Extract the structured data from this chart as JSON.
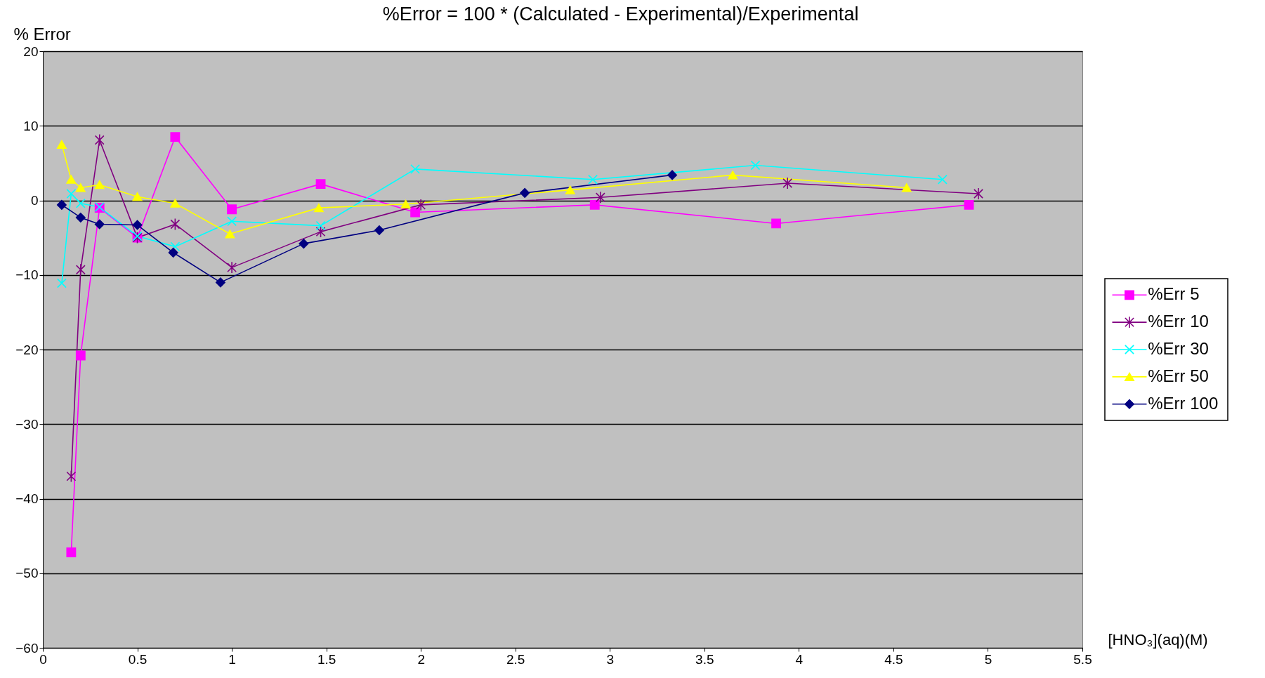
{
  "chart_data": {
    "type": "line",
    "title": "%Error = 100 * (Calculated - Experimental)/Experimental",
    "xlabel": "[HNO₃](aq)(M)",
    "ylabel": "% Error",
    "xlim": [
      0,
      5.5
    ],
    "xticks": [
      0,
      0.5,
      1,
      1.5,
      2,
      2.5,
      3,
      3.5,
      4,
      4.5,
      5,
      5.5
    ],
    "ylim": [
      -60,
      20
    ],
    "yticks": [
      -60,
      -50,
      -40,
      -30,
      -20,
      -10,
      0,
      10,
      20
    ],
    "grid": "y",
    "legend": "right",
    "series": [
      {
        "name": "%Err 5",
        "color": "#ff00ff",
        "marker": "square",
        "x": [
          0.15,
          0.2,
          0.3,
          0.5,
          0.7,
          1.0,
          1.47,
          1.97,
          2.92,
          3.88,
          4.9
        ],
        "values": [
          -47.2,
          -20.8,
          -1.0,
          -5.0,
          8.5,
          -1.2,
          2.2,
          -1.6,
          -0.6,
          -3.1,
          -0.6
        ]
      },
      {
        "name": "%Err 10",
        "color": "#800080",
        "marker": "cross",
        "x": [
          0.15,
          0.2,
          0.3,
          0.5,
          0.7,
          1.0,
          1.47,
          2.0,
          2.95,
          3.94,
          4.95
        ],
        "values": [
          -37.0,
          -9.3,
          8.1,
          -5.0,
          -3.2,
          -9.0,
          -4.2,
          -0.6,
          0.4,
          2.3,
          0.9
        ]
      },
      {
        "name": "%Err 30",
        "color": "#00ffff",
        "marker": "cross",
        "x": [
          0.1,
          0.15,
          0.2,
          0.3,
          0.5,
          0.7,
          1.0,
          1.47,
          1.97,
          2.91,
          3.77,
          4.76
        ],
        "values": [
          -11.1,
          0.9,
          -0.4,
          -0.9,
          -4.8,
          -6.2,
          -2.8,
          -3.4,
          4.2,
          2.8,
          4.7,
          2.8
        ]
      },
      {
        "name": "%Err 50",
        "color": "#ffff00",
        "marker": "triangle",
        "x": [
          0.1,
          0.15,
          0.2,
          0.3,
          0.5,
          0.7,
          0.99,
          1.46,
          1.92,
          2.79,
          3.65,
          4.57
        ],
        "values": [
          7.5,
          2.8,
          1.7,
          2.1,
          0.5,
          -0.4,
          -4.5,
          -1.0,
          -0.5,
          1.4,
          3.4,
          1.7
        ]
      },
      {
        "name": "%Err 100",
        "color": "#000080",
        "marker": "diamond",
        "x": [
          0.1,
          0.2,
          0.3,
          0.5,
          0.69,
          0.94,
          1.38,
          1.78,
          2.55,
          3.33
        ],
        "values": [
          -0.6,
          -2.3,
          -3.2,
          -3.3,
          -7.0,
          -11.0,
          -5.8,
          -4.0,
          1.0,
          3.4
        ]
      }
    ]
  }
}
